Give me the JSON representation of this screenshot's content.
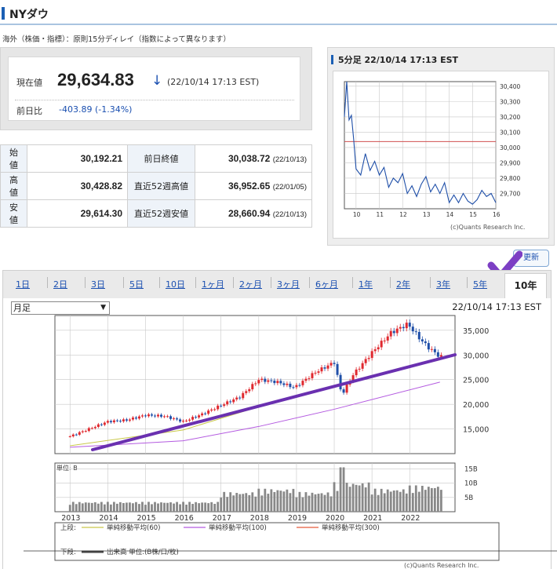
{
  "header": {
    "title": "NYダウ"
  },
  "note": "海外（株価・指標）：原則15分ディレイ（指数によって異なります）",
  "price": {
    "current_label": "現在値",
    "current_value": "29,634.83",
    "arrow": "↓",
    "current_time": "(22/10/14 17:13 EST)",
    "change_label": "前日比",
    "change_value": "-403.89 (-1.34%)"
  },
  "stats": {
    "rows": [
      {
        "h1": "始値",
        "v1": "30,192.21",
        "h2": "前日終値",
        "v2": "30,038.72",
        "d2": "(22/10/13)"
      },
      {
        "h1": "高値",
        "v1": "30,428.82",
        "h2": "直近52週高値",
        "v2": "36,952.65",
        "d2": "(22/01/05)"
      },
      {
        "h1": "安値",
        "v1": "29,614.30",
        "h2": "直近52週安値",
        "v2": "28,660.94",
        "d2": "(22/10/13)"
      }
    ]
  },
  "intraday": {
    "title": "5分足 22/10/14 17:13 EST",
    "credit": "(c)Quants Research Inc."
  },
  "refresh_label": "更新",
  "tabs": [
    "1日",
    "2日",
    "3日",
    "5日",
    "10日",
    "1ヶ月",
    "2ヶ月",
    "3ヶ月",
    "6ヶ月",
    "1年",
    "2年",
    "3年",
    "5年",
    "10年"
  ],
  "active_tab": "10年",
  "select_value": "月足",
  "timestamp": "22/10/14 17:13 EST",
  "legend": {
    "upper_label": "上段:",
    "ma60": "単純移動平均(60)",
    "ma100": "単純移動平均(100)",
    "ma300": "単純移動平均(300)",
    "lower_label": "下段:",
    "volume": "出来高 単位:(B株/口/枚)"
  },
  "volume_unit": "単位: B",
  "main_credit": "(c)Quants Research Inc.",
  "colors": {
    "up": "#e0282e",
    "down": "#1f4fa8",
    "ma60": "#c9c84a",
    "ma100": "#b45be0",
    "ma300": "#e55a3a",
    "trend": "#6a30b0",
    "volume": "#888888",
    "ref": "#d05050"
  },
  "chart_data": [
    {
      "type": "line",
      "title": "5分足 22/10/14 17:13 EST",
      "x": [
        9.5,
        9.6,
        9.7,
        9.8,
        9.9,
        10.0,
        10.2,
        10.4,
        10.6,
        10.8,
        11.0,
        11.2,
        11.4,
        11.6,
        11.8,
        12.0,
        12.2,
        12.4,
        12.6,
        12.8,
        13.0,
        13.2,
        13.4,
        13.6,
        13.8,
        14.0,
        14.2,
        14.4,
        14.6,
        14.8,
        15.0,
        15.2,
        15.4,
        15.6,
        15.8,
        16.0
      ],
      "y": [
        30200,
        30430,
        30180,
        30210,
        30050,
        29860,
        29820,
        29960,
        29850,
        29910,
        29820,
        29870,
        29740,
        29800,
        29770,
        29830,
        29700,
        29750,
        29680,
        29760,
        29810,
        29710,
        29760,
        29700,
        29770,
        29640,
        29690,
        29640,
        29700,
        29650,
        29630,
        29660,
        29720,
        29680,
        29700,
        29640
      ],
      "xlim": [
        9.5,
        16
      ],
      "x_ticks": [
        "10",
        "11",
        "12",
        "13",
        "14",
        "15",
        "16"
      ],
      "ylim": [
        29600,
        30430
      ],
      "y_ticks": [
        "30,400",
        "30,300",
        "30,200",
        "30,100",
        "30,000",
        "29,900",
        "29,800",
        "29,700"
      ],
      "reference_line": 30038.72
    },
    {
      "type": "line",
      "title": "",
      "x": [
        2013.0,
        2013.5,
        2014.0,
        2014.5,
        2015.0,
        2015.5,
        2016.0,
        2016.5,
        2017.0,
        2017.5,
        2018.0,
        2018.5,
        2018.95,
        2019.5,
        2020.0,
        2020.2,
        2020.5,
        2021.0,
        2021.5,
        2021.95,
        2022.3,
        2022.5,
        2022.8
      ],
      "y": [
        13500,
        15000,
        16500,
        16800,
        17800,
        17600,
        16500,
        18000,
        19800,
        21500,
        25000,
        24500,
        23400,
        26500,
        28500,
        21900,
        26000,
        30500,
        34500,
        36300,
        33000,
        31500,
        29634
      ],
      "series_ma": [
        {
          "name": "単純移動平均(60)",
          "x": [
            2013.0,
            2016.0,
            2018.0,
            2020.0,
            2022.8
          ],
          "y": [
            11600,
            14800,
            19500,
            23800,
            29000
          ]
        },
        {
          "name": "単純移動平均(100)",
          "x": [
            2013.0,
            2016.0,
            2018.0,
            2020.0,
            2022.8
          ],
          "y": [
            11300,
            12600,
            15500,
            19000,
            24500
          ]
        }
      ],
      "xlim": [
        2012.6,
        2023.2
      ],
      "x_ticks": [
        "2013",
        "2014",
        "2015",
        "2016",
        "2017",
        "2018",
        "2019",
        "2020",
        "2021",
        "2022"
      ],
      "ylim": [
        10000,
        38000
      ],
      "y_ticks": [
        "35,000",
        "30,000",
        "25,000",
        "20,000",
        "15,000"
      ]
    },
    {
      "type": "bar",
      "title": "",
      "categories": [
        "2013",
        "2014",
        "2015",
        "2016",
        "2017",
        "2018",
        "2019",
        "2020",
        "2021",
        "2022"
      ],
      "values": [
        3,
        3,
        3,
        3,
        6,
        7,
        6,
        9,
        7,
        8
      ],
      "ylabel": "単位: B",
      "y_ticks": [
        "15B",
        "10B",
        "5B"
      ],
      "ylim": [
        0,
        17
      ]
    }
  ]
}
